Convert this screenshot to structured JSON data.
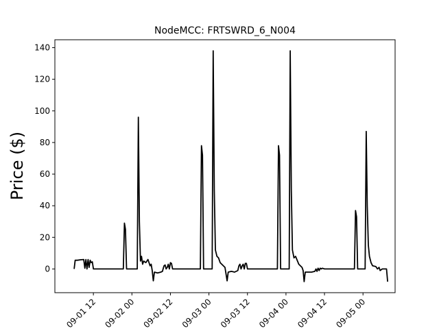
{
  "chart_data": {
    "type": "line",
    "title": "NodeMCC: FRTSWRD_6_N004",
    "xlabel": "",
    "ylabel": "Price ($)",
    "x_axis": "datetime",
    "xlim": [
      "2022-09-01 00:00",
      "2022-09-05 10:00"
    ],
    "ylim": [
      -15,
      145
    ],
    "x_ticks": [
      {
        "t": "2022-09-01 12:00",
        "label": "09-01 12"
      },
      {
        "t": "2022-09-02 00:00",
        "label": "09-02 00"
      },
      {
        "t": "2022-09-02 12:00",
        "label": "09-02 12"
      },
      {
        "t": "2022-09-03 00:00",
        "label": "09-03 00"
      },
      {
        "t": "2022-09-03 12:00",
        "label": "09-03 12"
      },
      {
        "t": "2022-09-04 00:00",
        "label": "09-04 00"
      },
      {
        "t": "2022-09-04 12:00",
        "label": "09-04 12"
      },
      {
        "t": "2022-09-05 00:00",
        "label": "09-05 00"
      }
    ],
    "y_ticks": [
      0,
      20,
      40,
      60,
      80,
      100,
      120,
      140
    ],
    "grid": false,
    "line_color": "#000000",
    "series": [
      {
        "points": [
          [
            "2022-09-01 06:00",
            0
          ],
          [
            "2022-09-01 06:20",
            5.5
          ],
          [
            "2022-09-01 07:00",
            5.5
          ],
          [
            "2022-09-01 08:00",
            5.8
          ],
          [
            "2022-09-01 09:00",
            6
          ],
          [
            "2022-09-01 09:20",
            0.5
          ],
          [
            "2022-09-01 09:40",
            6
          ],
          [
            "2022-09-01 10:00",
            0
          ],
          [
            "2022-09-01 10:20",
            6
          ],
          [
            "2022-09-01 10:40",
            1
          ],
          [
            "2022-09-01 11:00",
            5.5
          ],
          [
            "2022-09-01 11:20",
            4
          ],
          [
            "2022-09-01 11:40",
            4.5
          ],
          [
            "2022-09-01 12:00",
            0
          ],
          [
            "2022-09-01 21:20",
            0
          ],
          [
            "2022-09-01 21:40",
            29
          ],
          [
            "2022-09-01 22:00",
            25
          ],
          [
            "2022-09-01 22:20",
            0
          ],
          [
            "2022-09-02 01:40",
            0
          ],
          [
            "2022-09-02 02:00",
            96
          ],
          [
            "2022-09-02 02:20",
            30
          ],
          [
            "2022-09-02 02:40",
            5
          ],
          [
            "2022-09-02 03:00",
            8
          ],
          [
            "2022-09-02 03:20",
            3
          ],
          [
            "2022-09-02 03:40",
            5
          ],
          [
            "2022-09-02 04:20",
            4
          ],
          [
            "2022-09-02 05:00",
            6
          ],
          [
            "2022-09-02 05:40",
            2
          ],
          [
            "2022-09-02 06:00",
            3
          ],
          [
            "2022-09-02 06:20",
            -1
          ],
          [
            "2022-09-02 06:40",
            -7.5
          ],
          [
            "2022-09-02 07:00",
            -2
          ],
          [
            "2022-09-02 08:00",
            -2.5
          ],
          [
            "2022-09-02 09:00",
            -2
          ],
          [
            "2022-09-02 09:30",
            -1.5
          ],
          [
            "2022-09-02 10:00",
            2
          ],
          [
            "2022-09-02 10:20",
            2.5
          ],
          [
            "2022-09-02 10:40",
            0
          ],
          [
            "2022-09-02 11:00",
            1
          ],
          [
            "2022-09-02 11:20",
            3
          ],
          [
            "2022-09-02 11:40",
            0
          ],
          [
            "2022-09-02 12:00",
            4
          ],
          [
            "2022-09-02 12:20",
            3.5
          ],
          [
            "2022-09-02 12:40",
            0
          ],
          [
            "2022-09-02 21:20",
            0
          ],
          [
            "2022-09-02 21:40",
            78
          ],
          [
            "2022-09-02 22:00",
            72
          ],
          [
            "2022-09-02 22:20",
            0
          ],
          [
            "2022-09-03 01:00",
            0
          ],
          [
            "2022-09-03 01:20",
            138
          ],
          [
            "2022-09-03 01:40",
            50
          ],
          [
            "2022-09-03 02:00",
            12
          ],
          [
            "2022-09-03 02:30",
            8
          ],
          [
            "2022-09-03 03:00",
            7
          ],
          [
            "2022-09-03 03:30",
            4
          ],
          [
            "2022-09-03 04:00",
            3
          ],
          [
            "2022-09-03 05:00",
            1
          ],
          [
            "2022-09-03 05:40",
            -7.5
          ],
          [
            "2022-09-03 06:00",
            -2
          ],
          [
            "2022-09-03 07:00",
            -1.5
          ],
          [
            "2022-09-03 08:00",
            -2
          ],
          [
            "2022-09-03 09:00",
            -1
          ],
          [
            "2022-09-03 09:20",
            2
          ],
          [
            "2022-09-03 09:40",
            3
          ],
          [
            "2022-09-03 10:00",
            0
          ],
          [
            "2022-09-03 10:20",
            2
          ],
          [
            "2022-09-03 10:40",
            3
          ],
          [
            "2022-09-03 11:00",
            0
          ],
          [
            "2022-09-03 11:20",
            3.5
          ],
          [
            "2022-09-03 11:40",
            3.5
          ],
          [
            "2022-09-03 12:00",
            0
          ],
          [
            "2022-09-03 21:20",
            0
          ],
          [
            "2022-09-03 21:40",
            78
          ],
          [
            "2022-09-03 22:00",
            72
          ],
          [
            "2022-09-03 22:20",
            0
          ],
          [
            "2022-09-04 01:00",
            0
          ],
          [
            "2022-09-04 01:20",
            138
          ],
          [
            "2022-09-04 01:40",
            50
          ],
          [
            "2022-09-04 02:00",
            12
          ],
          [
            "2022-09-04 02:30",
            7
          ],
          [
            "2022-09-04 03:00",
            8
          ],
          [
            "2022-09-04 04:00",
            3
          ],
          [
            "2022-09-04 05:00",
            1
          ],
          [
            "2022-09-04 05:20",
            -1
          ],
          [
            "2022-09-04 05:40",
            -8
          ],
          [
            "2022-09-04 06:00",
            -2
          ],
          [
            "2022-09-04 08:00",
            -2
          ],
          [
            "2022-09-04 09:00",
            -1.5
          ],
          [
            "2022-09-04 09:20",
            0
          ],
          [
            "2022-09-04 09:40",
            -1.5
          ],
          [
            "2022-09-04 10:00",
            0.5
          ],
          [
            "2022-09-04 10:20",
            -1
          ],
          [
            "2022-09-04 10:40",
            0.5
          ],
          [
            "2022-09-04 11:00",
            0
          ],
          [
            "2022-09-04 11:20",
            0.5
          ],
          [
            "2022-09-04 12:00",
            0
          ],
          [
            "2022-09-04 21:20",
            0
          ],
          [
            "2022-09-04 21:40",
            37
          ],
          [
            "2022-09-04 22:00",
            33
          ],
          [
            "2022-09-04 22:20",
            0
          ],
          [
            "2022-09-05 00:40",
            0
          ],
          [
            "2022-09-05 01:00",
            87
          ],
          [
            "2022-09-05 01:20",
            40
          ],
          [
            "2022-09-05 01:40",
            15
          ],
          [
            "2022-09-05 02:00",
            8
          ],
          [
            "2022-09-05 02:30",
            4
          ],
          [
            "2022-09-05 03:00",
            2
          ],
          [
            "2022-09-05 04:00",
            1.5
          ],
          [
            "2022-09-05 04:30",
            0
          ],
          [
            "2022-09-05 05:00",
            1
          ],
          [
            "2022-09-05 05:20",
            -1
          ],
          [
            "2022-09-05 06:00",
            0
          ],
          [
            "2022-09-05 07:20",
            0
          ],
          [
            "2022-09-05 07:40",
            -8
          ]
        ]
      }
    ]
  }
}
